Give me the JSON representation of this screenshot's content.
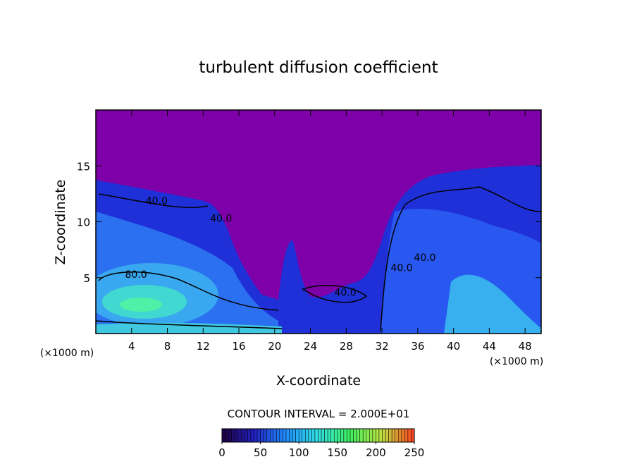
{
  "chart_data": {
    "type": "contour",
    "title": "turbulent diffusion coefficient",
    "x_label": "X-coordinate",
    "y_label": "Z-coordinate",
    "x_unit": "(×1000 m)",
    "y_unit": "(×1000 m)",
    "xlim": [
      0,
      49.8
    ],
    "ylim": [
      0,
      20
    ],
    "xticks": [
      4,
      8,
      12,
      16,
      20,
      24,
      28,
      32,
      36,
      40,
      44,
      48
    ],
    "yticks": [
      5,
      10,
      15
    ],
    "contour_labels": [
      {
        "label": "40.0",
        "x": 6.8,
        "y": 11.9
      },
      {
        "label": "40.0",
        "x": 14.0,
        "y": 10.3
      },
      {
        "label": "80.0",
        "x": 4.5,
        "y": 5.3
      },
      {
        "label": "40.0",
        "x": 27.9,
        "y": 3.7
      },
      {
        "label": "40.0",
        "x": 34.2,
        "y": 5.9
      },
      {
        "label": "40.0",
        "x": 36.8,
        "y": 6.8
      }
    ],
    "footer": "CONTOUR INTERVAL = 2.000E+01",
    "colorbar": {
      "lim": [
        0,
        250
      ],
      "ticks": [
        0,
        50,
        100,
        150,
        200,
        250
      ],
      "colors": [
        "#200040",
        "#2020c0",
        "#2090ff",
        "#30e0e0",
        "#40f060",
        "#c0e040",
        "#ff4020"
      ]
    }
  }
}
